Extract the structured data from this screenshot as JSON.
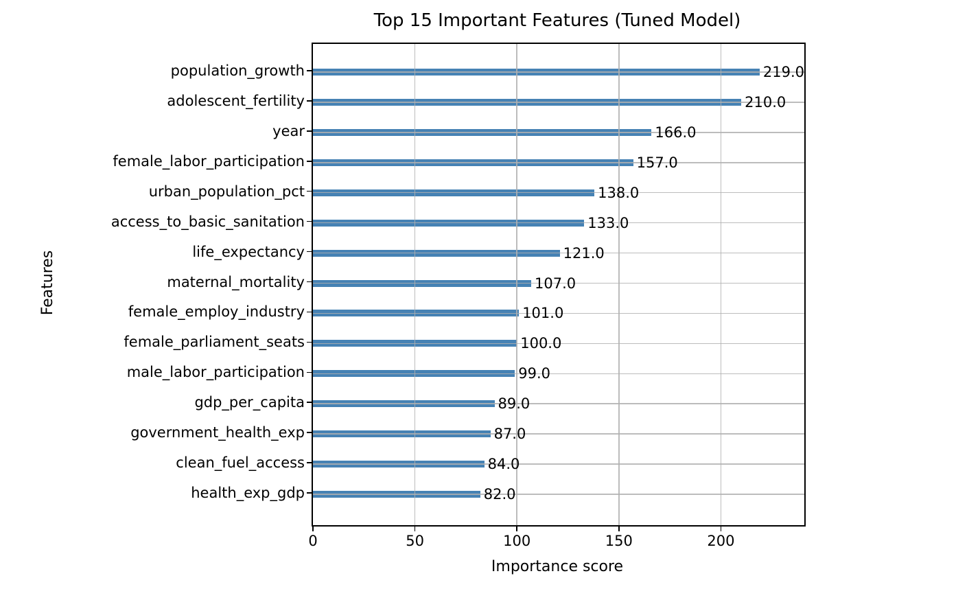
{
  "chart_data": {
    "type": "bar",
    "orientation": "horizontal",
    "title": "Top 15 Important Features (Tuned Model)",
    "xlabel": "Importance score",
    "ylabel": "Features",
    "categories": [
      "population_growth",
      "adolescent_fertility",
      "year",
      "female_labor_participation",
      "urban_population_pct",
      "access_to_basic_sanitation",
      "life_expectancy",
      "maternal_mortality",
      "female_employ_industry",
      "female_parliament_seats",
      "male_labor_participation",
      "gdp_per_capita",
      "government_health_exp",
      "clean_fuel_access",
      "health_exp_gdp"
    ],
    "values": [
      219,
      210,
      166,
      157,
      138,
      133,
      121,
      107,
      101,
      100,
      99,
      89,
      87,
      84,
      82
    ],
    "value_labels": [
      "219.0",
      "210.0",
      "166.0",
      "157.0",
      "138.0",
      "133.0",
      "121.0",
      "107.0",
      "101.0",
      "100.0",
      "99.0",
      "89.0",
      "87.0",
      "84.0",
      "82.0"
    ],
    "xlim": [
      0,
      240.9
    ],
    "xticks": [
      0,
      50,
      100,
      150,
      200
    ],
    "grid": true,
    "legend": false,
    "bar_color": "#4682b4",
    "grid_color": "#b0b0b0",
    "axis_color": "#000000",
    "text_color": "#000000",
    "background_color": "#ffffff"
  }
}
